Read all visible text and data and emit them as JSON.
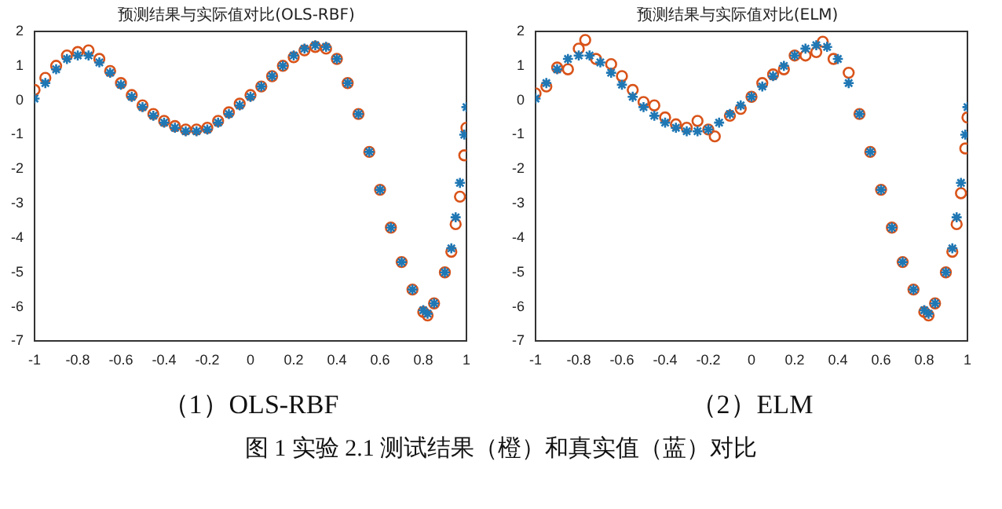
{
  "chart_data": [
    {
      "type": "scatter",
      "title": "预测结果与实际值对比(OLS-RBF)",
      "annotations": [
        "（1）OLS-RBF",
        "图 1 实验 2.1 测试结果（橙）和真实值（蓝）对比"
      ],
      "xlim": [
        -1,
        1
      ],
      "xticks": [
        -1,
        -0.8,
        -0.6,
        -0.4,
        -0.2,
        0,
        0.2,
        0.4,
        0.6,
        0.8,
        1
      ],
      "ylim": [
        -7,
        2
      ],
      "yticks": [
        -7,
        -6,
        -5,
        -4,
        -3,
        -2,
        -1,
        0,
        1,
        2
      ],
      "grid": false,
      "legend": false,
      "series": [
        {
          "color": "#1f77b4",
          "marker": "cross",
          "x": [
            -1,
            -0.95,
            -0.9,
            -0.85,
            -0.8,
            -0.75,
            -0.7,
            -0.65,
            -0.6,
            -0.55,
            -0.5,
            -0.45,
            -0.4,
            -0.35,
            -0.3,
            -0.25,
            -0.2,
            -0.15,
            -0.1,
            -0.05,
            0,
            0.05,
            0.1,
            0.15,
            0.2,
            0.25,
            0.3,
            0.35,
            0.4,
            0.45,
            0.5,
            0.55,
            0.6,
            0.65,
            0.7,
            0.75,
            0.8,
            0.82,
            0.85,
            0.9,
            0.93,
            0.95,
            0.97,
            0.99,
            1
          ],
          "values": [
            0.05,
            0.5,
            0.9,
            1.2,
            1.3,
            1.3,
            1.1,
            0.8,
            0.45,
            0.1,
            -0.2,
            -0.45,
            -0.65,
            -0.8,
            -0.9,
            -0.9,
            -0.85,
            -0.65,
            -0.4,
            -0.15,
            0.1,
            0.4,
            0.7,
            1.0,
            1.3,
            1.5,
            1.6,
            1.55,
            1.2,
            0.5,
            -0.4,
            -1.5,
            -2.6,
            -3.7,
            -4.7,
            -5.5,
            -6.1,
            -6.2,
            -5.9,
            -5.0,
            -4.3,
            -3.4,
            -2.4,
            -1.0,
            -0.2
          ]
        },
        {
          "color": "#d95319",
          "marker": "circle",
          "x": [
            -1,
            -0.95,
            -0.9,
            -0.85,
            -0.8,
            -0.75,
            -0.7,
            -0.65,
            -0.6,
            -0.55,
            -0.5,
            -0.45,
            -0.4,
            -0.35,
            -0.3,
            -0.25,
            -0.2,
            -0.15,
            -0.1,
            -0.05,
            0,
            0.05,
            0.1,
            0.15,
            0.2,
            0.25,
            0.3,
            0.35,
            0.4,
            0.45,
            0.5,
            0.55,
            0.6,
            0.65,
            0.7,
            0.75,
            0.8,
            0.82,
            0.85,
            0.9,
            0.93,
            0.95,
            0.97,
            0.99,
            1
          ],
          "values": [
            0.3,
            0.65,
            1.0,
            1.3,
            1.4,
            1.45,
            1.2,
            0.85,
            0.5,
            0.15,
            -0.15,
            -0.4,
            -0.6,
            -0.75,
            -0.85,
            -0.85,
            -0.8,
            -0.6,
            -0.35,
            -0.1,
            0.15,
            0.4,
            0.7,
            1.0,
            1.25,
            1.45,
            1.55,
            1.5,
            1.2,
            0.5,
            -0.4,
            -1.5,
            -2.6,
            -3.7,
            -4.7,
            -5.5,
            -6.15,
            -6.25,
            -5.9,
            -5.0,
            -4.4,
            -3.6,
            -2.8,
            -1.6,
            -0.8
          ]
        }
      ]
    },
    {
      "type": "scatter",
      "title": "预测结果与实际值对比(ELM)",
      "annotations": [
        "（2）ELM"
      ],
      "xlim": [
        -1,
        1
      ],
      "xticks": [
        -1,
        -0.8,
        -0.6,
        -0.4,
        -0.2,
        0,
        0.2,
        0.4,
        0.6,
        0.8,
        1
      ],
      "ylim": [
        -7,
        2
      ],
      "yticks": [
        -7,
        -6,
        -5,
        -4,
        -3,
        -2,
        -1,
        0,
        1,
        2
      ],
      "grid": false,
      "legend": false,
      "series": [
        {
          "color": "#1f77b4",
          "marker": "cross",
          "x": [
            -1,
            -0.95,
            -0.9,
            -0.85,
            -0.8,
            -0.75,
            -0.7,
            -0.65,
            -0.6,
            -0.55,
            -0.5,
            -0.45,
            -0.4,
            -0.35,
            -0.3,
            -0.25,
            -0.2,
            -0.15,
            -0.1,
            -0.05,
            0,
            0.05,
            0.1,
            0.15,
            0.2,
            0.25,
            0.3,
            0.35,
            0.4,
            0.45,
            0.5,
            0.55,
            0.6,
            0.65,
            0.7,
            0.75,
            0.8,
            0.82,
            0.85,
            0.9,
            0.93,
            0.95,
            0.97,
            0.99,
            1
          ],
          "values": [
            0.05,
            0.5,
            0.9,
            1.2,
            1.3,
            1.3,
            1.1,
            0.8,
            0.45,
            0.1,
            -0.2,
            -0.45,
            -0.65,
            -0.8,
            -0.9,
            -0.9,
            -0.85,
            -0.65,
            -0.4,
            -0.15,
            0.1,
            0.4,
            0.7,
            1.0,
            1.3,
            1.5,
            1.6,
            1.55,
            1.2,
            0.5,
            -0.4,
            -1.5,
            -2.6,
            -3.7,
            -4.7,
            -5.5,
            -6.1,
            -6.2,
            -5.9,
            -5.0,
            -4.3,
            -3.4,
            -2.4,
            -1.0,
            -0.2
          ]
        },
        {
          "color": "#d95319",
          "marker": "circle",
          "x": [
            -1,
            -0.95,
            -0.9,
            -0.85,
            -0.8,
            -0.77,
            -0.72,
            -0.65,
            -0.6,
            -0.55,
            -0.5,
            -0.45,
            -0.4,
            -0.35,
            -0.3,
            -0.25,
            -0.2,
            -0.17,
            -0.1,
            -0.05,
            0,
            0.05,
            0.1,
            0.15,
            0.2,
            0.25,
            0.3,
            0.33,
            0.38,
            0.45,
            0.5,
            0.55,
            0.6,
            0.65,
            0.7,
            0.75,
            0.8,
            0.82,
            0.85,
            0.9,
            0.93,
            0.95,
            0.97,
            0.99,
            1
          ],
          "values": [
            0.2,
            0.4,
            0.95,
            0.9,
            1.5,
            1.75,
            1.2,
            1.05,
            0.7,
            0.3,
            -0.05,
            -0.15,
            -0.5,
            -0.7,
            -0.8,
            -0.6,
            -0.85,
            -1.05,
            -0.45,
            -0.25,
            0.1,
            0.5,
            0.75,
            0.9,
            1.3,
            1.3,
            1.4,
            1.7,
            1.2,
            0.8,
            -0.4,
            -1.5,
            -2.6,
            -3.7,
            -4.7,
            -5.5,
            -6.15,
            -6.25,
            -5.9,
            -5.0,
            -4.4,
            -3.6,
            -2.7,
            -1.4,
            -0.5
          ]
        }
      ]
    }
  ]
}
